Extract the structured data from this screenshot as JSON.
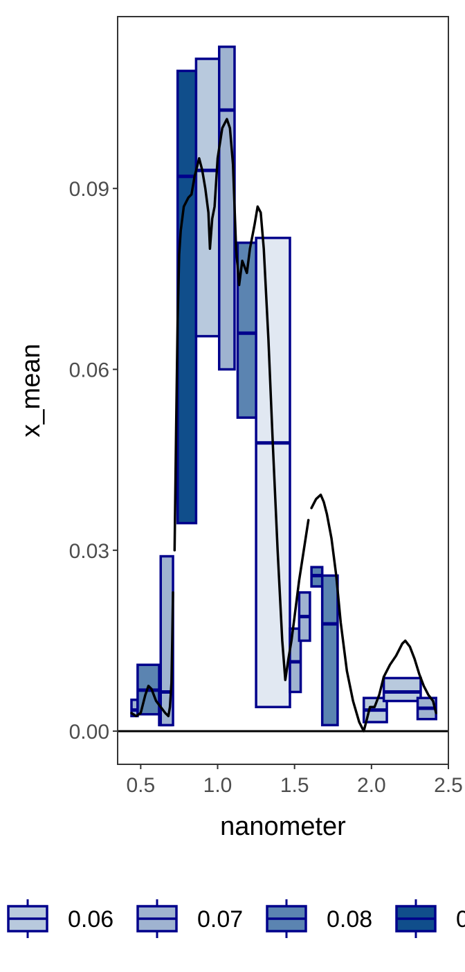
{
  "chart_data": {
    "type": "boxplot",
    "xlabel": "nanometer",
    "ylabel": "x_mean",
    "xlim": [
      0.35,
      2.5
    ],
    "ylim": [
      -0.0055,
      0.1185
    ],
    "x_ticks": [
      {
        "value": 0.5,
        "label": "0.5"
      },
      {
        "value": 1.0,
        "label": "1.0"
      },
      {
        "value": 1.5,
        "label": "1.5"
      },
      {
        "value": 2.0,
        "label": "2.0"
      },
      {
        "value": 2.5,
        "label": "2.5"
      }
    ],
    "y_ticks": [
      {
        "value": 0.0,
        "label": "0.00"
      },
      {
        "value": 0.03,
        "label": "0.03"
      },
      {
        "value": 0.06,
        "label": "0.06"
      },
      {
        "value": 0.09,
        "label": "0.09"
      }
    ],
    "hline_y": 0.0,
    "box_stroke": "#00008b",
    "legend": {
      "position": "bottom",
      "entries": [
        {
          "label": "0.06",
          "fill": "#b8c9dd"
        },
        {
          "label": "0.07",
          "fill": "#9fb3d0"
        },
        {
          "label": "0.08",
          "fill": "#5b84b1"
        },
        {
          "label": "0",
          "fill": "#104e8b"
        }
      ]
    },
    "boxes": [
      {
        "x0": 0.44,
        "x1": 0.48,
        "low": 0.0025,
        "high": 0.0052,
        "mid": 0.0035,
        "fill": "#9fb3d0"
      },
      {
        "x0": 0.48,
        "x1": 0.62,
        "low": 0.0028,
        "high": 0.011,
        "mid": 0.0068,
        "fill": "#5b84b1"
      },
      {
        "x0": 0.62,
        "x1": 0.7,
        "low": 0.001,
        "high": 0.0065,
        "mid": 0.0065,
        "fill": "#9fb3d0"
      },
      {
        "x0": 0.63,
        "x1": 0.71,
        "low": 0.001,
        "high": 0.029,
        "mid": 0.0065,
        "fill": "#9fb3d0"
      },
      {
        "x0": 0.74,
        "x1": 0.86,
        "low": 0.0345,
        "high": 0.1095,
        "mid": 0.092,
        "fill": "#104e8b"
      },
      {
        "x0": 0.86,
        "x1": 1.02,
        "low": 0.0655,
        "high": 0.1115,
        "mid": 0.093,
        "fill": "#b8c9dd"
      },
      {
        "x0": 1.01,
        "x1": 1.11,
        "low": 0.06,
        "high": 0.1135,
        "mid": 0.103,
        "fill": "#9fb3d0"
      },
      {
        "x0": 1.13,
        "x1": 1.27,
        "low": 0.052,
        "high": 0.081,
        "mid": 0.066,
        "fill": "#5b84b1"
      },
      {
        "x0": 1.25,
        "x1": 1.47,
        "low": 0.004,
        "high": 0.0818,
        "mid": 0.0478,
        "fill": "#e1e8f2"
      },
      {
        "x0": 1.47,
        "x1": 1.54,
        "low": 0.0065,
        "high": 0.017,
        "mid": 0.0115,
        "fill": "#9fb3d0"
      },
      {
        "x0": 1.53,
        "x1": 1.6,
        "low": 0.015,
        "high": 0.023,
        "mid": 0.019,
        "fill": "#9fb3d0"
      },
      {
        "x0": 1.61,
        "x1": 1.68,
        "low": 0.024,
        "high": 0.0272,
        "mid": 0.0258,
        "fill": "#5b84b1"
      },
      {
        "x0": 1.68,
        "x1": 1.78,
        "low": 0.001,
        "high": 0.0258,
        "mid": 0.0178,
        "fill": "#5b84b1"
      },
      {
        "x0": 1.95,
        "x1": 2.1,
        "low": 0.0015,
        "high": 0.0055,
        "mid": 0.0035,
        "fill": "#b8c9dd"
      },
      {
        "x0": 2.08,
        "x1": 2.32,
        "low": 0.005,
        "high": 0.0088,
        "mid": 0.0065,
        "fill": "#b8c9dd"
      },
      {
        "x0": 2.3,
        "x1": 2.42,
        "low": 0.002,
        "high": 0.0055,
        "mid": 0.0038,
        "fill": "#9fb3d0"
      }
    ],
    "line_segments": [
      [
        [
          0.44,
          0.003
        ],
        [
          0.47,
          0.0025
        ],
        [
          0.5,
          0.003
        ],
        [
          0.53,
          0.006
        ],
        [
          0.55,
          0.0075
        ],
        [
          0.57,
          0.007
        ],
        [
          0.6,
          0.005
        ],
        [
          0.63,
          0.004
        ],
        [
          0.66,
          0.003
        ],
        [
          0.68,
          0.0025
        ],
        [
          0.69,
          0.004
        ],
        [
          0.7,
          0.008
        ],
        [
          0.705,
          0.015
        ],
        [
          0.71,
          0.023
        ]
      ],
      [
        [
          0.72,
          0.03
        ],
        [
          0.73,
          0.05
        ],
        [
          0.74,
          0.068
        ],
        [
          0.75,
          0.079
        ],
        [
          0.76,
          0.083
        ],
        [
          0.78,
          0.087
        ],
        [
          0.81,
          0.0885
        ],
        [
          0.83,
          0.089
        ],
        [
          0.85,
          0.092
        ],
        [
          0.88,
          0.095
        ],
        [
          0.9,
          0.093
        ],
        [
          0.92,
          0.09
        ],
        [
          0.94,
          0.086
        ],
        [
          0.95,
          0.08
        ],
        [
          0.965,
          0.085
        ],
        [
          0.98,
          0.087
        ],
        [
          1.0,
          0.095
        ],
        [
          1.03,
          0.1
        ],
        [
          1.06,
          0.1015
        ],
        [
          1.08,
          0.1
        ],
        [
          1.1,
          0.094
        ],
        [
          1.12,
          0.08
        ],
        [
          1.14,
          0.074
        ],
        [
          1.16,
          0.078
        ],
        [
          1.19,
          0.076
        ],
        [
          1.21,
          0.08
        ],
        [
          1.24,
          0.084
        ],
        [
          1.26,
          0.087
        ],
        [
          1.28,
          0.086
        ],
        [
          1.3,
          0.08
        ],
        [
          1.33,
          0.065
        ],
        [
          1.36,
          0.047
        ],
        [
          1.39,
          0.03
        ],
        [
          1.42,
          0.015
        ],
        [
          1.44,
          0.0085
        ],
        [
          1.46,
          0.012
        ],
        [
          1.48,
          0.015
        ],
        [
          1.5,
          0.019
        ],
        [
          1.53,
          0.025
        ],
        [
          1.56,
          0.03
        ],
        [
          1.59,
          0.035
        ]
      ],
      [
        [
          1.61,
          0.037
        ],
        [
          1.64,
          0.0385
        ],
        [
          1.67,
          0.0392
        ],
        [
          1.69,
          0.038
        ],
        [
          1.71,
          0.036
        ],
        [
          1.74,
          0.032
        ],
        [
          1.77,
          0.026
        ],
        [
          1.8,
          0.018
        ],
        [
          1.84,
          0.01
        ],
        [
          1.88,
          0.005
        ],
        [
          1.92,
          0.0015
        ],
        [
          1.95,
          0.0
        ],
        [
          1.97,
          0.002
        ],
        [
          1.99,
          0.004
        ],
        [
          2.02,
          0.004
        ],
        [
          2.05,
          0.006
        ],
        [
          2.08,
          0.009
        ],
        [
          2.12,
          0.011
        ],
        [
          2.16,
          0.0125
        ],
        [
          2.2,
          0.0145
        ],
        [
          2.22,
          0.015
        ],
        [
          2.25,
          0.014
        ],
        [
          2.28,
          0.012
        ],
        [
          2.31,
          0.0095
        ],
        [
          2.34,
          0.0075
        ],
        [
          2.37,
          0.006
        ],
        [
          2.4,
          0.005
        ],
        [
          2.42,
          0.003
        ]
      ]
    ]
  }
}
